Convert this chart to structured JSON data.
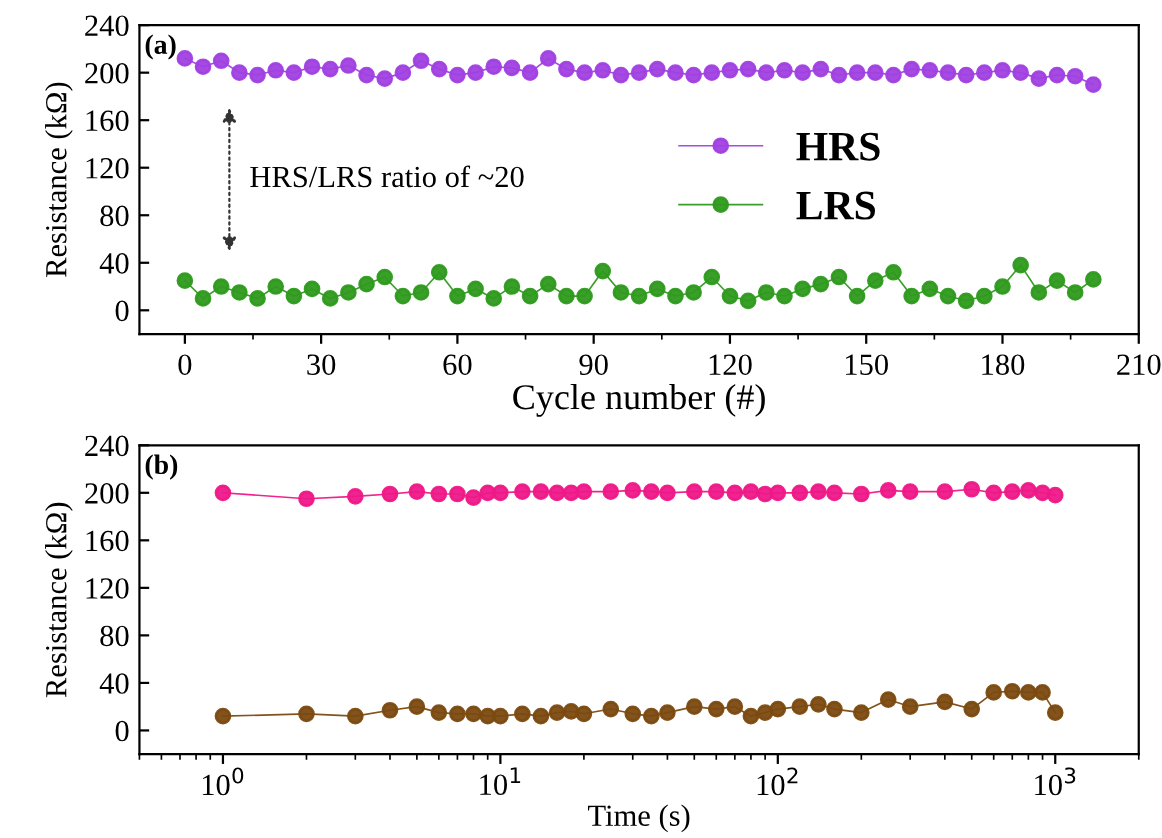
{
  "chart_data": [
    {
      "type": "line",
      "xlabel": "Cycle number (#)",
      "ylabel": "Resistance (kΩ)",
      "xlim": [
        -10,
        210
      ],
      "ylim": [
        -20,
        240
      ],
      "xticks": [
        0,
        30,
        60,
        90,
        120,
        150,
        180,
        210
      ],
      "yticks": [
        0,
        40,
        80,
        120,
        160,
        200,
        240
      ],
      "marker": "circle",
      "line_style": "solid",
      "legend": "right",
      "grid": false,
      "annotations": [
        "(a)",
        "HRS/LRS ratio of ~20"
      ],
      "x": [
        0,
        4,
        8,
        12,
        16,
        20,
        24,
        28,
        32,
        36,
        40,
        44,
        48,
        52,
        56,
        60,
        64,
        68,
        72,
        76,
        80,
        84,
        88,
        92,
        96,
        100,
        104,
        108,
        112,
        116,
        120,
        124,
        128,
        132,
        136,
        140,
        144,
        148,
        152,
        156,
        160,
        164,
        168,
        172,
        176,
        180,
        184,
        188,
        192,
        196,
        200
      ],
      "series": [
        {
          "name": "HRS",
          "color": "#a040e0",
          "values": [
            212,
            205,
            210,
            200,
            198,
            202,
            200,
            205,
            203,
            206,
            198,
            195,
            200,
            210,
            203,
            198,
            200,
            205,
            204,
            200,
            212,
            203,
            200,
            202,
            198,
            200,
            203,
            200,
            198,
            200,
            202,
            203,
            200,
            202,
            200,
            203,
            198,
            200,
            200,
            198,
            203,
            202,
            200,
            198,
            200,
            202,
            200,
            195,
            198,
            197,
            190
          ]
        },
        {
          "name": "LRS",
          "color": "#2e9a1e",
          "values": [
            25,
            10,
            20,
            15,
            10,
            20,
            12,
            18,
            10,
            15,
            22,
            28,
            12,
            15,
            32,
            12,
            18,
            10,
            20,
            12,
            22,
            12,
            12,
            33,
            15,
            12,
            18,
            12,
            15,
            28,
            12,
            8,
            15,
            12,
            18,
            22,
            28,
            12,
            25,
            32,
            12,
            18,
            12,
            8,
            12,
            20,
            38,
            15,
            25,
            15,
            26
          ]
        }
      ]
    },
    {
      "type": "line",
      "xlabel": "Time (s)",
      "ylabel": "Resistance (kΩ)",
      "log": "x",
      "xlim": [
        0.5,
        2000
      ],
      "ylim": [
        -20,
        240
      ],
      "xticks": [
        {
          "value": 1,
          "label": "10$^{0}$"
        },
        {
          "value": 10,
          "label": "10$^{1}$"
        },
        {
          "value": 100,
          "label": "10$^{2}$"
        },
        {
          "value": 1000,
          "label": "10$^{3}$"
        }
      ],
      "yticks": [
        0,
        40,
        80,
        120,
        160,
        200,
        240
      ],
      "marker": "circle",
      "line_style": "solid",
      "grid": false,
      "annotations": [
        "(b)"
      ],
      "x": [
        1,
        2,
        3,
        4,
        5,
        6,
        7,
        8,
        9,
        10,
        12,
        14,
        16,
        18,
        20,
        25,
        30,
        35,
        40,
        50,
        60,
        70,
        80,
        90,
        100,
        120,
        140,
        160,
        200,
        250,
        300,
        400,
        500,
        600,
        700,
        800,
        900,
        1000
      ],
      "series": [
        {
          "color": "#ee1888",
          "values": [
            200,
            195,
            197,
            199,
            201,
            199,
            199,
            196,
            200,
            200,
            201,
            201,
            200,
            200,
            201,
            201,
            202,
            201,
            200,
            201,
            201,
            200,
            201,
            199,
            200,
            200,
            201,
            200,
            199,
            202,
            201,
            201,
            203,
            200,
            201,
            202,
            200,
            198
          ]
        },
        {
          "color": "#7b4a10",
          "values": [
            12,
            14,
            12,
            17,
            20,
            15,
            14,
            14,
            12,
            12,
            14,
            12,
            15,
            16,
            14,
            18,
            14,
            12,
            15,
            20,
            18,
            20,
            12,
            15,
            18,
            20,
            22,
            18,
            15,
            26,
            20,
            24,
            18,
            32,
            33,
            32,
            32,
            15
          ]
        }
      ]
    }
  ]
}
